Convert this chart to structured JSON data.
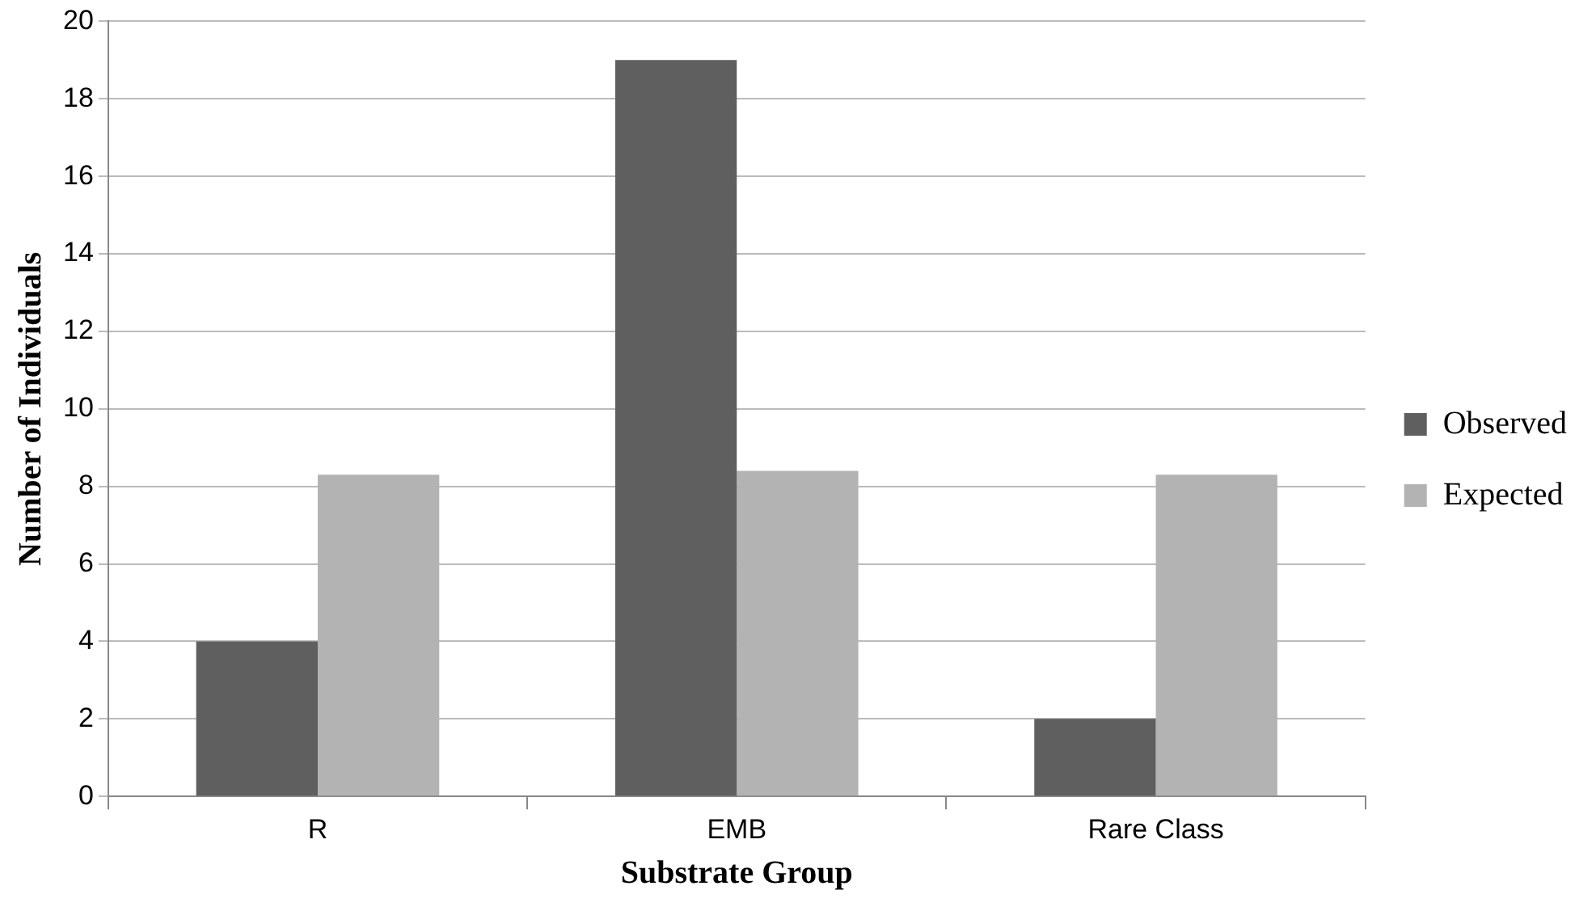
{
  "chart_data": {
    "type": "bar",
    "xlabel": "Substrate Group",
    "ylabel": "Number of Individuals",
    "categories": [
      "R",
      "EMB",
      "Rare Class"
    ],
    "series": [
      {
        "name": "Observed",
        "color": "#5f5f5f",
        "values": [
          4,
          19,
          2
        ]
      },
      {
        "name": "Expected",
        "color": "#b3b3b3",
        "values": [
          8.3,
          8.4,
          8.3
        ]
      }
    ],
    "ylim": [
      0,
      20
    ],
    "yticks": [
      0,
      2,
      4,
      6,
      8,
      10,
      12,
      14,
      16,
      18,
      20
    ],
    "grid": "y",
    "legend": "right"
  }
}
